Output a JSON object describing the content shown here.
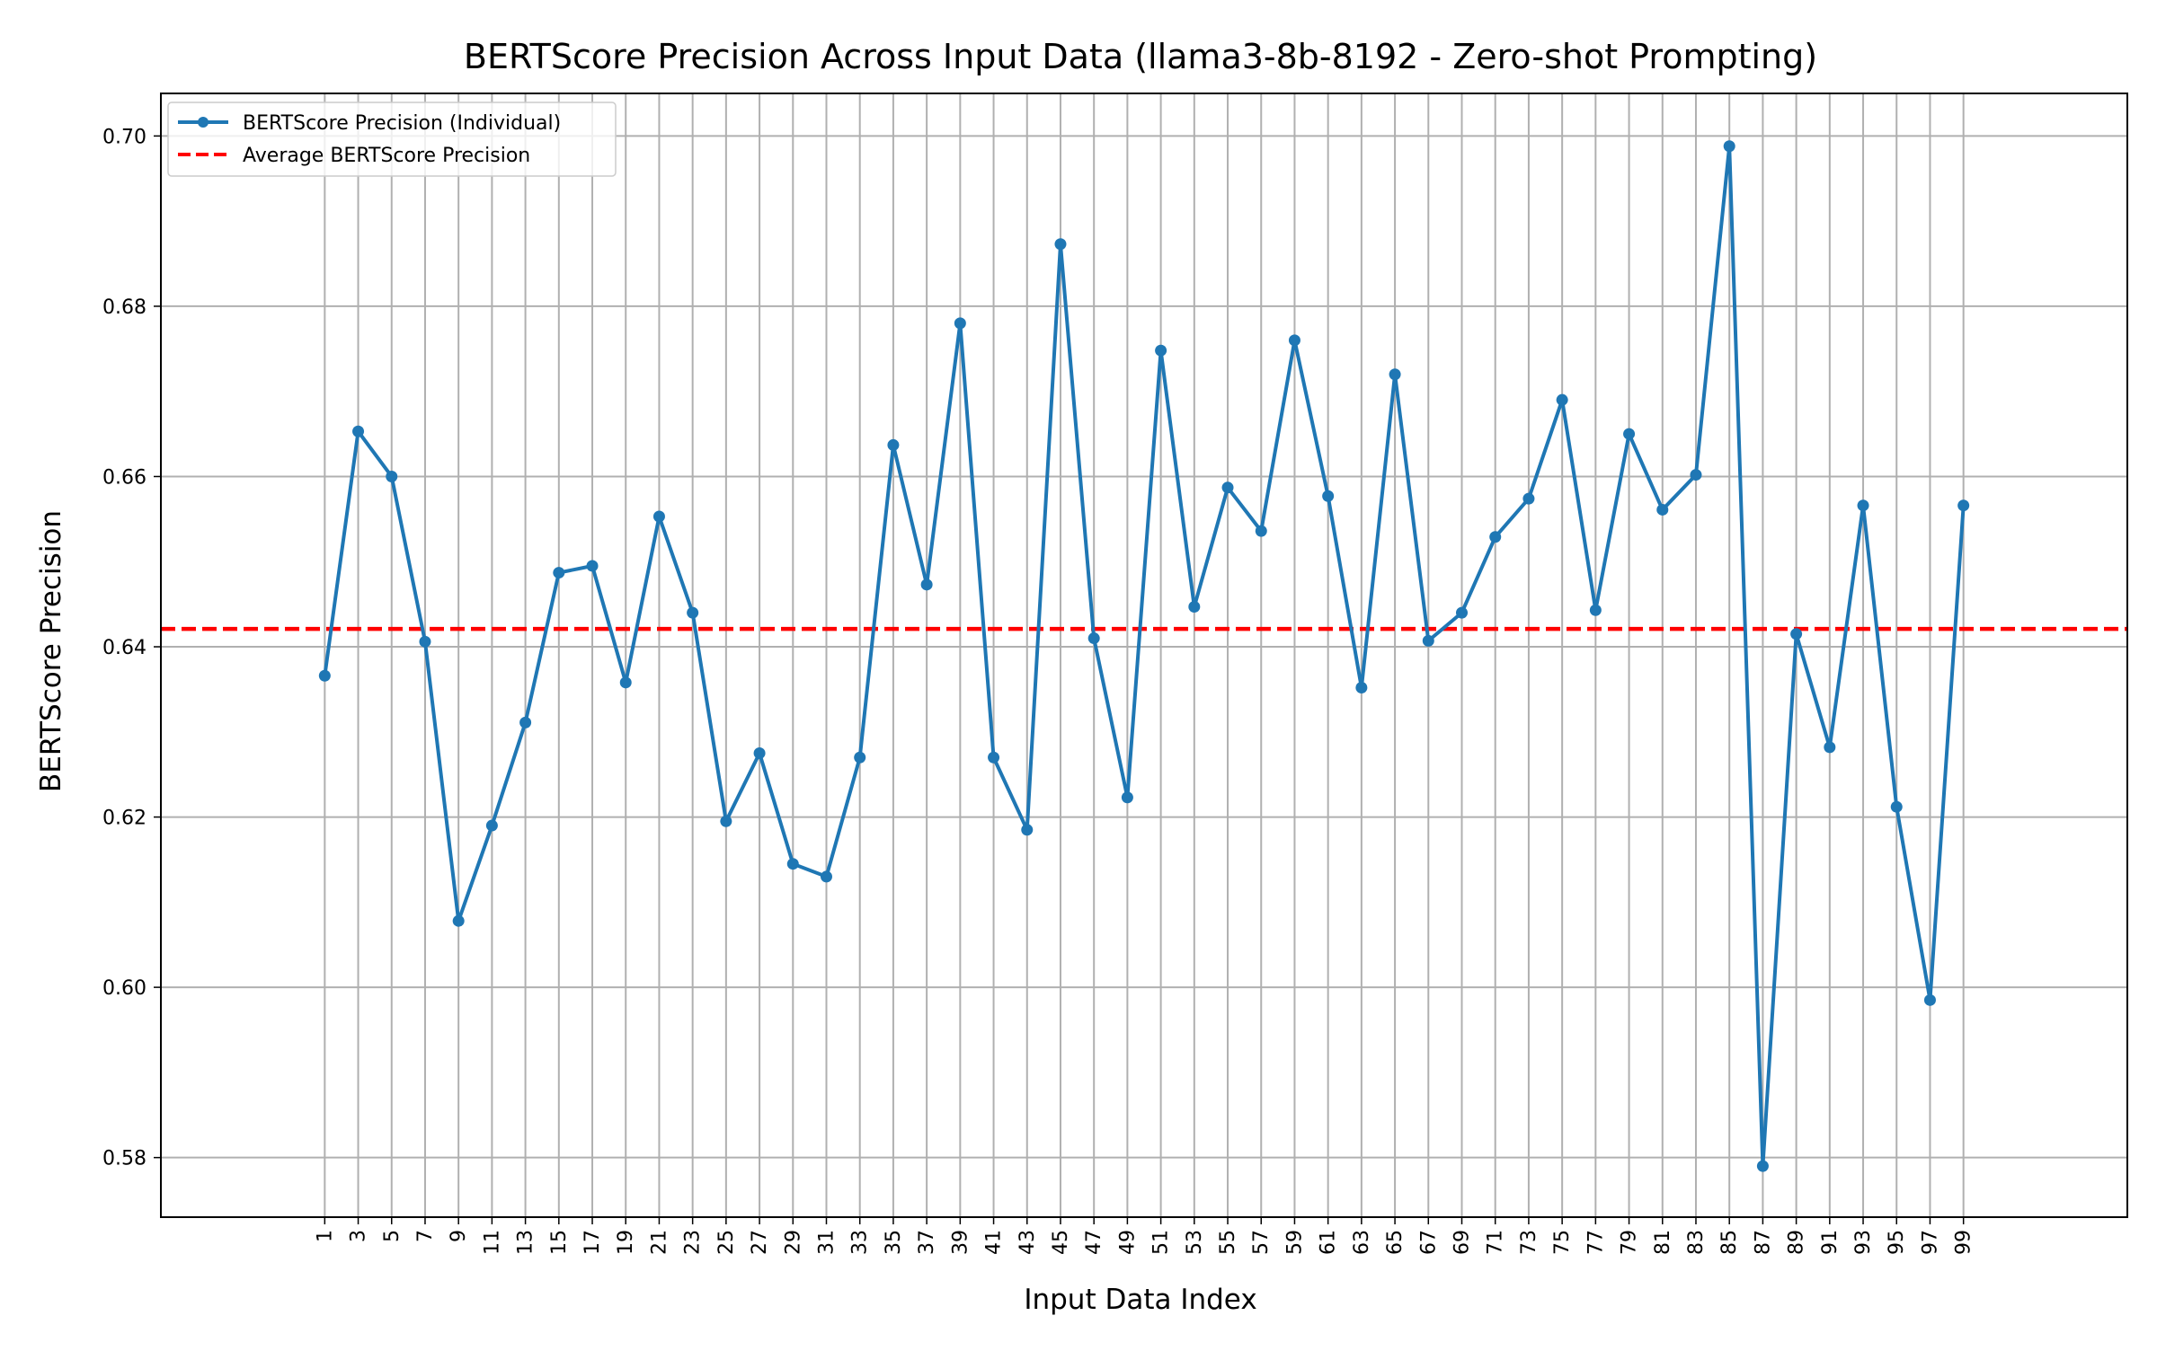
{
  "chart_data": {
    "type": "line",
    "title": "BERTScore Precision Across Input Data (llama3-8b-8192 - Zero-shot Prompting)",
    "xlabel": "Input Data Index",
    "ylabel": "BERTScore Precision",
    "x": [
      1,
      3,
      5,
      7,
      9,
      11,
      13,
      15,
      17,
      19,
      21,
      23,
      25,
      27,
      29,
      31,
      33,
      35,
      37,
      39,
      41,
      43,
      45,
      47,
      49,
      51,
      53,
      55,
      57,
      59,
      61,
      63,
      65,
      67,
      69,
      71,
      73,
      75,
      77,
      79,
      81,
      83,
      85,
      87,
      89,
      91,
      93,
      95,
      97,
      99
    ],
    "x_tick_labels": [
      "1",
      "3",
      "5",
      "7",
      "9",
      "11",
      "13",
      "15",
      "17",
      "19",
      "21",
      "23",
      "25",
      "27",
      "29",
      "31",
      "33",
      "35",
      "37",
      "39",
      "41",
      "43",
      "45",
      "47",
      "49",
      "51",
      "53",
      "55",
      "57",
      "59",
      "61",
      "63",
      "65",
      "67",
      "69",
      "71",
      "73",
      "75",
      "77",
      "79",
      "81",
      "83",
      "85",
      "87",
      "89",
      "91",
      "93",
      "95",
      "97",
      "99"
    ],
    "xlim": [
      -8.8,
      108.8
    ],
    "ylim": [
      0.573,
      0.705
    ],
    "y_ticks": [
      0.58,
      0.6,
      0.62,
      0.64,
      0.66,
      0.68,
      0.7
    ],
    "y_tick_labels": [
      "0.58",
      "0.60",
      "0.62",
      "0.64",
      "0.66",
      "0.68",
      "0.70"
    ],
    "grid": true,
    "legend_position": "top-left",
    "series": [
      {
        "name": "BERTScore Precision (Individual)",
        "style": "line-marker",
        "color": "#1f77b4",
        "values": [
          0.6366,
          0.6653,
          0.66,
          0.6406,
          0.6078,
          0.619,
          0.6311,
          0.6487,
          0.6495,
          0.6358,
          0.6553,
          0.644,
          0.6195,
          0.6275,
          0.6145,
          0.613,
          0.627,
          0.6637,
          0.6473,
          0.678,
          0.627,
          0.6185,
          0.6873,
          0.641,
          0.6223,
          0.6748,
          0.6447,
          0.6587,
          0.6536,
          0.676,
          0.6577,
          0.6352,
          0.672,
          0.6407,
          0.644,
          0.6529,
          0.6574,
          0.669,
          0.6443,
          0.665,
          0.6561,
          0.6602,
          0.6988,
          0.579,
          0.6415,
          0.6282,
          0.6566,
          0.6212,
          0.5985,
          0.6566
        ]
      },
      {
        "name": "Average BERTScore Precision",
        "style": "dashed",
        "color": "#ff0000",
        "value": 0.6421
      }
    ]
  }
}
